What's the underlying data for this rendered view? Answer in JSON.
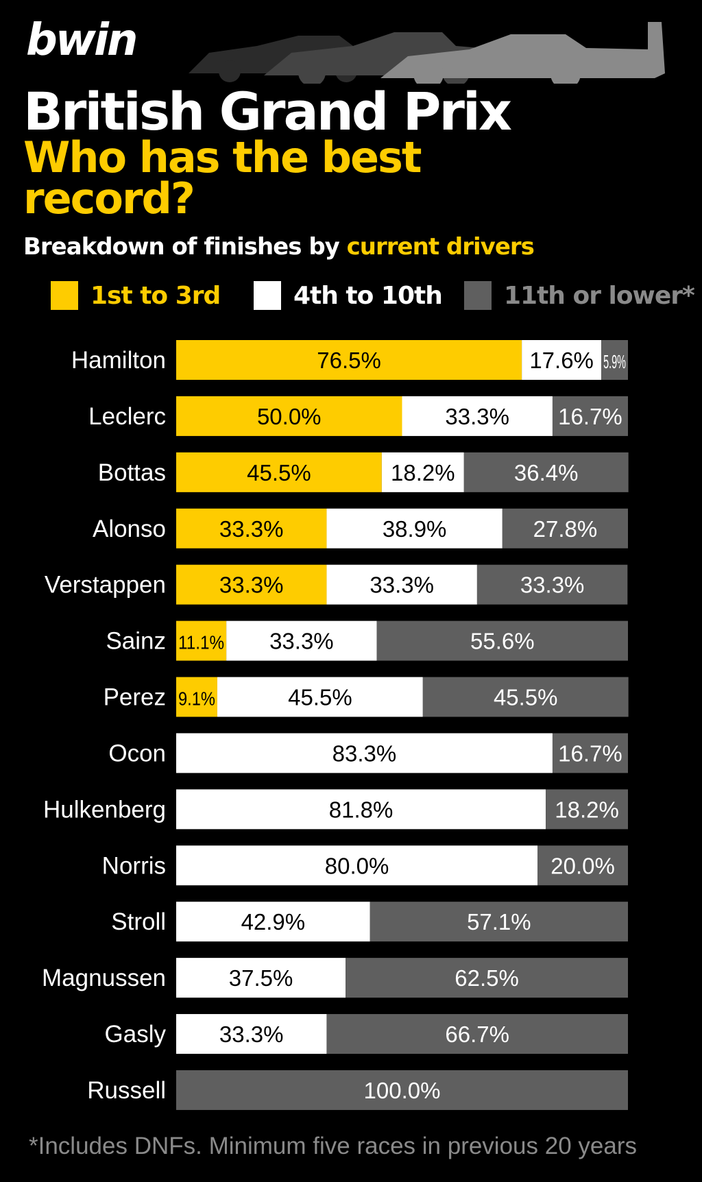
{
  "header": {
    "brand": "bwin",
    "title": "British Grand Prix",
    "subtitle": "Who has the best record?",
    "description_prefix": "Breakdown of finishes by ",
    "description_highlight": "current drivers"
  },
  "colors": {
    "podium": "#fecc00",
    "points": "#ffffff",
    "lower": "#5f5f5f",
    "background": "#000000",
    "footnote": "#8a8a8a"
  },
  "chart_data": {
    "type": "bar",
    "orientation": "horizontal",
    "stacked": true,
    "normalized": true,
    "categories": [
      "Hamilton",
      "Leclerc",
      "Bottas",
      "Alonso",
      "Verstappen",
      "Sainz",
      "Perez",
      "Ocon",
      "Hulkenberg",
      "Norris",
      "Stroll",
      "Magnussen",
      "Gasly",
      "Russell"
    ],
    "series": [
      {
        "name": "1st to 3rd",
        "color": "#fecc00",
        "values": [
          76.5,
          50.0,
          45.5,
          33.3,
          33.3,
          11.1,
          9.1,
          0,
          0,
          0,
          0,
          0,
          0,
          0
        ]
      },
      {
        "name": "4th to 10th",
        "color": "#ffffff",
        "values": [
          17.6,
          33.3,
          18.2,
          38.9,
          33.3,
          33.3,
          45.5,
          83.3,
          81.8,
          80.0,
          42.9,
          37.5,
          33.3,
          0
        ]
      },
      {
        "name": "11th or lower*",
        "color": "#5f5f5f",
        "values": [
          5.9,
          16.7,
          36.4,
          27.8,
          33.3,
          55.6,
          45.5,
          16.7,
          18.2,
          20.0,
          57.1,
          62.5,
          66.7,
          100.0
        ]
      }
    ],
    "value_suffix": "%",
    "legend_position": "top",
    "grid": false
  },
  "footnote": "*Includes DNFs. Minimum five races in previous 20 years"
}
